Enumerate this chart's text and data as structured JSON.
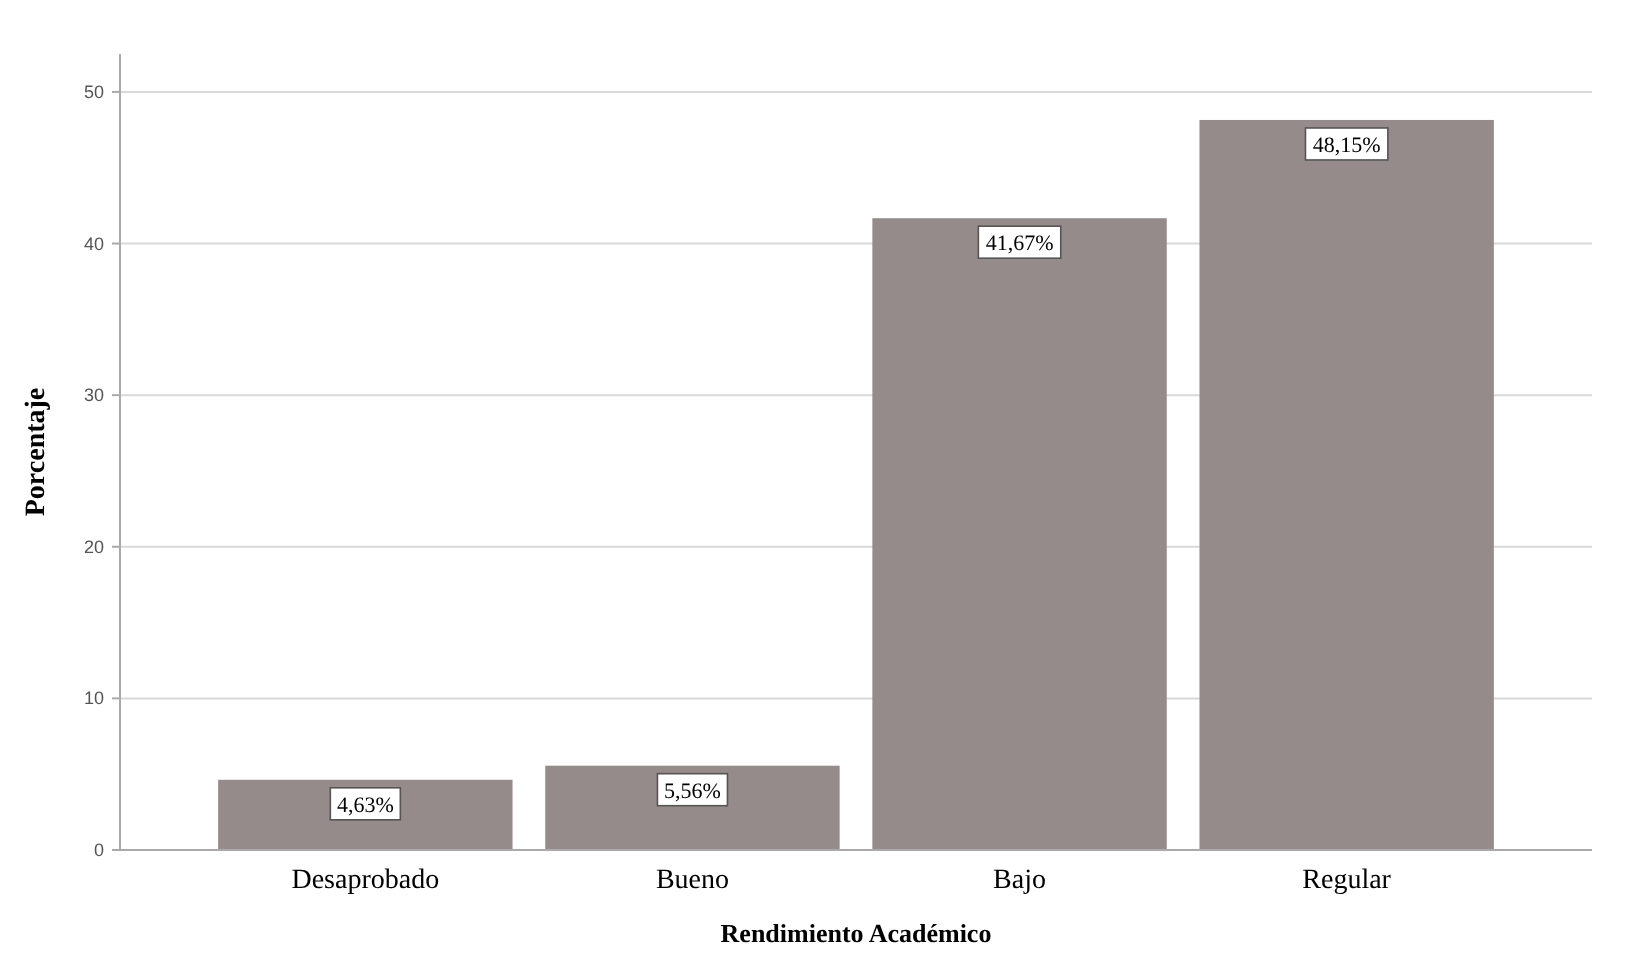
{
  "chart_data": {
    "type": "bar",
    "xlabel": "Rendimiento Académico",
    "ylabel": "Porcentaje",
    "categories": [
      "Desaprobado",
      "Bueno",
      "Bajo",
      "Regular"
    ],
    "values": [
      4.63,
      5.56,
      41.67,
      48.15
    ],
    "value_labels": [
      "4,63%",
      "5,56%",
      "41,67%",
      "48,15%"
    ],
    "color": "#958b8b",
    "ylim": [
      0,
      52.5
    ],
    "yticks": [
      0,
      10,
      20,
      30,
      40,
      50
    ],
    "grid": "y"
  }
}
